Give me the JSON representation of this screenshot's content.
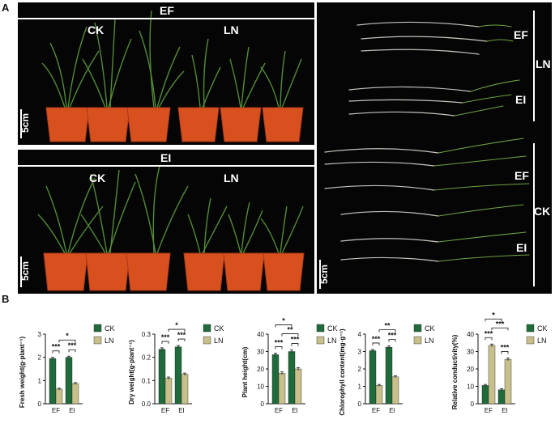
{
  "figure": {
    "panel_a_label": "A",
    "panel_b_label": "B",
    "photo_top": {
      "header": "EF",
      "left_group": "CK",
      "right_group": "LN",
      "scale": "5cm"
    },
    "photo_bottom": {
      "header": "EI",
      "left_group": "CK",
      "right_group": "LN",
      "scale": "5cm"
    },
    "photo_roots": {
      "ln_group": "LN",
      "ck_group": "CK",
      "ef_upper": "EF",
      "ei_upper": "EI",
      "ef_lower": "EF",
      "ei_lower": "EI",
      "scale": "5cm"
    }
  },
  "colors": {
    "ck": "#1f6b3b",
    "ln": "#c8bf8a",
    "pot": "#d9501f",
    "leaf": "#5b9a3c",
    "bg": "#050505"
  },
  "chart_data": [
    {
      "type": "bar",
      "categories": [
        "EF",
        "EI"
      ],
      "series": [
        {
          "name": "CK",
          "values": [
            1.95,
            2.0
          ],
          "errors": [
            0.05,
            0.05
          ]
        },
        {
          "name": "LN",
          "values": [
            0.63,
            0.87
          ],
          "errors": [
            0.04,
            0.04
          ]
        }
      ],
      "ylabel": "Fresh weight(g·plant⁻¹)",
      "ylim": [
        0,
        3.0
      ],
      "yticks": [
        "0",
        "1",
        "2",
        "3"
      ],
      "stars": [
        "***",
        "***",
        "*"
      ]
    },
    {
      "type": "bar",
      "categories": [
        "EF",
        "EI"
      ],
      "series": [
        {
          "name": "CK",
          "values": [
            0.235,
            0.245
          ],
          "errors": [
            0.006,
            0.006
          ]
        },
        {
          "name": "LN",
          "values": [
            0.11,
            0.127
          ],
          "errors": [
            0.005,
            0.005
          ]
        }
      ],
      "ylabel": "Dry weight(g·plant⁻¹)",
      "ylim": [
        0,
        0.3
      ],
      "yticks": [
        "0.0",
        "0.1",
        "0.2",
        "0.3"
      ],
      "stars": [
        "***",
        "***",
        "*"
      ]
    },
    {
      "type": "bar",
      "categories": [
        "EF",
        "EI"
      ],
      "series": [
        {
          "name": "CK",
          "values": [
            28.2,
            30.0
          ],
          "errors": [
            0.9,
            0.9
          ]
        },
        {
          "name": "LN",
          "values": [
            17.5,
            20.0
          ],
          "errors": [
            0.8,
            0.8
          ]
        }
      ],
      "ylabel": "Plant height(cm)",
      "ylim": [
        0,
        40
      ],
      "yticks": [
        "0",
        "10",
        "20",
        "30",
        "40"
      ],
      "stars": [
        "***",
        "***",
        "**",
        "*"
      ]
    },
    {
      "type": "bar",
      "categories": [
        "EF",
        "EI"
      ],
      "series": [
        {
          "name": "CK",
          "values": [
            3.05,
            3.25
          ],
          "errors": [
            0.07,
            0.07
          ]
        },
        {
          "name": "LN",
          "values": [
            1.05,
            1.55
          ],
          "errors": [
            0.06,
            0.06
          ]
        }
      ],
      "ylabel": "Chlorophyll content(mg·g⁻¹)",
      "ylim": [
        0,
        4
      ],
      "yticks": [
        "0",
        "1",
        "2",
        "3",
        "4"
      ],
      "stars": [
        "***",
        "***",
        "**"
      ]
    },
    {
      "type": "bar",
      "categories": [
        "EF",
        "EI"
      ],
      "series": [
        {
          "name": "CK",
          "values": [
            10.5,
            8.0
          ],
          "errors": [
            0.6,
            0.6
          ]
        },
        {
          "name": "LN",
          "values": [
            33.5,
            25.5
          ],
          "errors": [
            0.8,
            0.8
          ]
        }
      ],
      "ylabel": "Relative conductivity(%)",
      "ylim": [
        0,
        40
      ],
      "yticks": [
        "0",
        "10",
        "20",
        "30",
        "40"
      ],
      "stars": [
        "***",
        "***",
        "***",
        "*"
      ]
    }
  ]
}
